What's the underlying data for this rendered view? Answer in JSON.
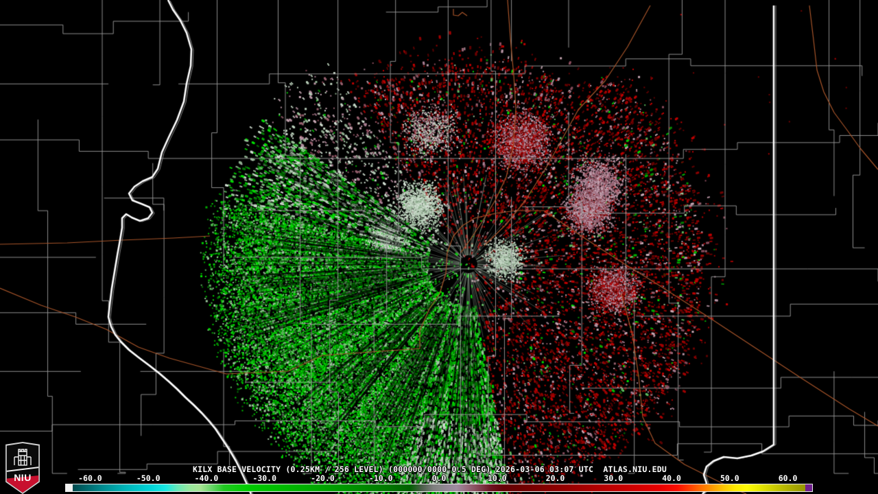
{
  "caption": {
    "text": "KILX BASE VELOCITY (0.25KM / 256 LEVEL) (000000/0000 0.5 DEG) 2026-03-06 03:07 UTC  ATLAS.NIU.EDU"
  },
  "station": {
    "id": "KILX",
    "product": "BASE VELOCITY",
    "resolution": "0.25KM / 256 LEVEL",
    "sweep": "000000/0000 0.5 DEG",
    "datetime": "2026-03-06 03:07 UTC",
    "source": "ATLAS.NIU.EDU"
  },
  "logo": {
    "text": "NIU"
  },
  "colorbar": {
    "min": -63,
    "max": 63,
    "ticks": [
      "-60.0",
      "-50.0",
      "-40.0",
      "-30.0",
      "-20.0",
      "-10.0",
      "0.0",
      "10.0",
      "20.0",
      "30.0",
      "40.0",
      "50.0",
      "60.0"
    ],
    "left_cap": "#f2f2f2",
    "right_cap": "#701f8c",
    "stops": [
      [
        -63,
        "#00494d"
      ],
      [
        -58,
        "#008a8f"
      ],
      [
        -54,
        "#00b4b8"
      ],
      [
        -50,
        "#00d2d6"
      ],
      [
        -47,
        "#19e8e3"
      ],
      [
        -45,
        "#66e8b8"
      ],
      [
        -43,
        "#96e89e"
      ],
      [
        -41,
        "#a8e494"
      ],
      [
        -39,
        "#66d466"
      ],
      [
        -37,
        "#22c822"
      ],
      [
        -33,
        "#00cc00"
      ],
      [
        -27,
        "#00bb00"
      ],
      [
        -21,
        "#00a800"
      ],
      [
        -15,
        "#009200"
      ],
      [
        -9,
        "#007a00"
      ],
      [
        -5,
        "#006000"
      ],
      [
        -3,
        "#4a5e48"
      ],
      [
        -1,
        "#7e7e7e"
      ],
      [
        0,
        "#868686"
      ],
      [
        1,
        "#908692"
      ],
      [
        3,
        "#a08ca0"
      ],
      [
        5,
        "#97687a"
      ],
      [
        7,
        "#82414f"
      ],
      [
        9,
        "#6b1220"
      ],
      [
        11,
        "#640008"
      ],
      [
        14,
        "#6e0000"
      ],
      [
        18,
        "#820000"
      ],
      [
        22,
        "#960000"
      ],
      [
        26,
        "#aa0000"
      ],
      [
        30,
        "#be0000"
      ],
      [
        34,
        "#d20000"
      ],
      [
        38,
        "#e60000"
      ],
      [
        41,
        "#fa0f00"
      ],
      [
        43,
        "#ff3c00"
      ],
      [
        45,
        "#ff6e00"
      ],
      [
        47,
        "#ff9b00"
      ],
      [
        49,
        "#ffc800"
      ],
      [
        51,
        "#ffeb00"
      ],
      [
        53,
        "#fdfa07"
      ],
      [
        55,
        "#e8e800"
      ],
      [
        57,
        "#d2d200"
      ],
      [
        59,
        "#bcbc00"
      ],
      [
        61,
        "#a8a800"
      ],
      [
        63,
        "#969600"
      ]
    ]
  },
  "map_colors": {
    "background": "#000000",
    "county_line": "#9a9a9a",
    "state_line": "#ffffff",
    "state_shadow": "#8a8a8a",
    "road": "#a8552a",
    "niu_red": "#c8102e"
  },
  "velocity_palette": {
    "inbound": [
      "#00e000",
      "#00c800",
      "#00ae00",
      "#009400",
      "#007a00",
      "#5cb85c",
      "#9cc89c"
    ],
    "inbound_pale": [
      "#b6ccb6",
      "#d2dfd2",
      "#8fae8f",
      "#c0d4c0"
    ],
    "outbound": [
      "#8c0000",
      "#700000",
      "#a40000",
      "#c00000",
      "#5e0000"
    ],
    "outbound_pale": [
      "#b894a4",
      "#a87c90",
      "#c8a8b4",
      "#96606e",
      "#8a4c5c"
    ]
  }
}
